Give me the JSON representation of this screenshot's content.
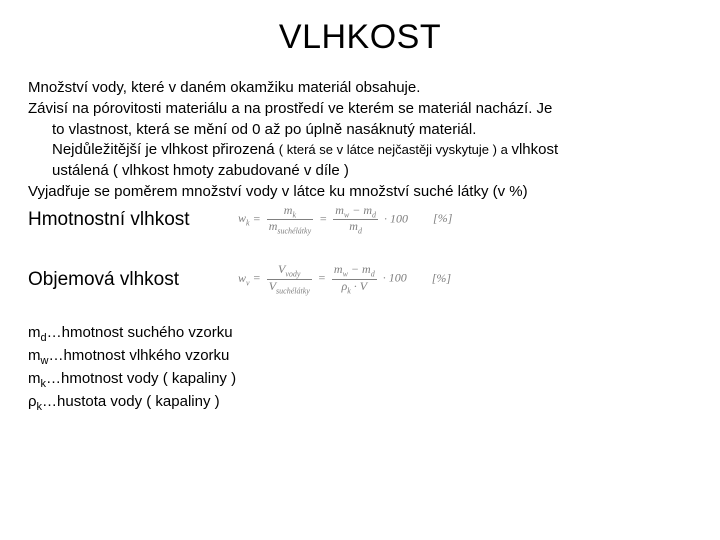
{
  "title": "VLHKOST",
  "paragraphs": {
    "p1": "Množství vody, které v daném okamžiku materiál obsahuje.",
    "p2a": "Závisí na pórovitosti materiálu a na prostředí ve kterém se materiál nachází. Je",
    "p2b": "to vlastnost, která se mění od 0 až po úplně nasáknutý materiál.",
    "p2c_pre": "Nejdůležitější je vlhkost přirozená ",
    "p2c_small1": "( která se v látce nejčastěji vyskytuje ) a ",
    "p2c_post": "vlhkost",
    "p2d_pre": "ustálená ",
    "p2d_small": "( vlhkost hmoty zabudované v díle )",
    "p3": "Vyjadřuje se poměrem množství vody v látce ku množství suché látky (v %)"
  },
  "mass": {
    "label": "Hmotnostní vlhkost",
    "lhs": "w",
    "lhs_sub": "k",
    "num1": "m",
    "num1_sub": "k",
    "den1": "m",
    "den1_sub": "suchélátky",
    "num2a": "m",
    "num2a_sub": "w",
    "minus": " − ",
    "num2b": "m",
    "num2b_sub": "d",
    "den2": "m",
    "den2_sub": "d",
    "tail": " · 100",
    "unit": "[%]"
  },
  "volume": {
    "label": "Objemová vlhkost",
    "lhs": "w",
    "lhs_sub": "v",
    "num1": "V",
    "num1_sub": "vody",
    "den1": "V",
    "den1_sub": "suchélátky",
    "num2a": "m",
    "num2a_sub": "w",
    "minus": " − ",
    "num2b": "m",
    "num2b_sub": "d",
    "den2a": "ρ",
    "den2a_sub": "k",
    "dot": " · ",
    "den2b": "V",
    "tail": " · 100",
    "unit": "[%]"
  },
  "legend": {
    "l1_sym": "m",
    "l1_sub": "d",
    "l1_txt": "…hmotnost suchého vzorku",
    "l2_sym": "m",
    "l2_sub": "w",
    "l2_txt": "…hmotnost vlhkého vzorku",
    "l3_sym": "m",
    "l3_sub": "k",
    "l3_txt": "…hmotnost vody ( kapaliny )",
    "l4_sym": "ρ",
    "l4_sub": "k",
    "l4_txt": "…hustota vody ( kapaliny )"
  },
  "colors": {
    "text": "#000000",
    "formula": "#808080",
    "background": "#ffffff"
  },
  "fonts": {
    "body_family": "Arial",
    "formula_family": "Times New Roman",
    "title_size_pt": 26,
    "body_size_pt": 11,
    "subhead_size_pt": 14,
    "small_size_pt": 10,
    "formula_size_pt": 9
  }
}
